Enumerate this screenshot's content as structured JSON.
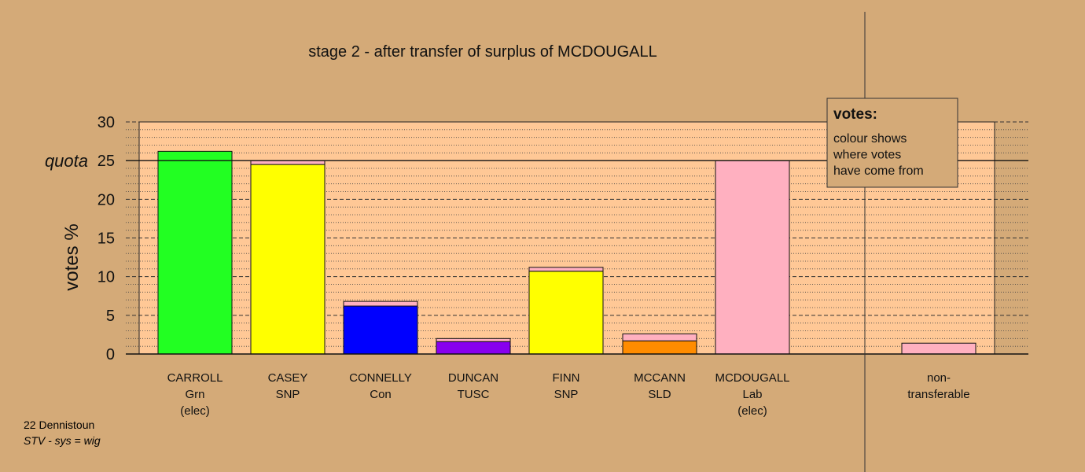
{
  "chart_data": {
    "type": "bar",
    "title": "stage 2 - after transfer of surplus of MCDOUGALL",
    "ylabel": "votes %",
    "ylim": [
      0,
      30
    ],
    "yticks": [
      0,
      5,
      10,
      15,
      20,
      25,
      30
    ],
    "quota": 25,
    "quota_label": "quota",
    "categories": [
      {
        "lines": [
          "CARROLL",
          "Grn",
          "(elec)"
        ]
      },
      {
        "lines": [
          "CASEY",
          "SNP"
        ]
      },
      {
        "lines": [
          "CONNELLY",
          "Con"
        ]
      },
      {
        "lines": [
          "DUNCAN",
          "TUSC"
        ]
      },
      {
        "lines": [
          "FINN",
          "SNP"
        ]
      },
      {
        "lines": [
          "MCCANN",
          "SLD"
        ]
      },
      {
        "lines": [
          "MCDOUGALL",
          "Lab",
          "(elec)"
        ]
      },
      {
        "lines": [
          "non-",
          "transferable"
        ]
      }
    ],
    "stacks": [
      [
        {
          "value": 26.2,
          "color": "#22ff22"
        }
      ],
      [
        {
          "value": 24.5,
          "color": "#ffff00"
        },
        {
          "value": 0.5,
          "color": "#ffb0c0"
        }
      ],
      [
        {
          "value": 6.2,
          "color": "#0000ff"
        },
        {
          "value": 0.6,
          "color": "#ffb0c0"
        }
      ],
      [
        {
          "value": 1.6,
          "color": "#8800ee"
        },
        {
          "value": 0.4,
          "color": "#ffb0c0"
        }
      ],
      [
        {
          "value": 10.7,
          "color": "#ffff00"
        },
        {
          "value": 0.5,
          "color": "#ffb0c0"
        }
      ],
      [
        {
          "value": 1.7,
          "color": "#ff8c00"
        },
        {
          "value": 0.9,
          "color": "#ffb0c0"
        }
      ],
      [
        {
          "value": 25.0,
          "color": "#ffb0c0"
        }
      ],
      [
        {
          "value": 1.4,
          "color": "#ffb0c0"
        }
      ]
    ],
    "legend": {
      "title": "votes:",
      "lines": [
        "colour shows",
        "where votes",
        "have come from"
      ],
      "placement": "top-right"
    },
    "grid": true,
    "colors": {
      "background": "#d4aa78",
      "plot_area": "#ffc896"
    }
  },
  "footer": {
    "line1": "22 Dennistoun",
    "line2": "STV - sys = wig"
  }
}
